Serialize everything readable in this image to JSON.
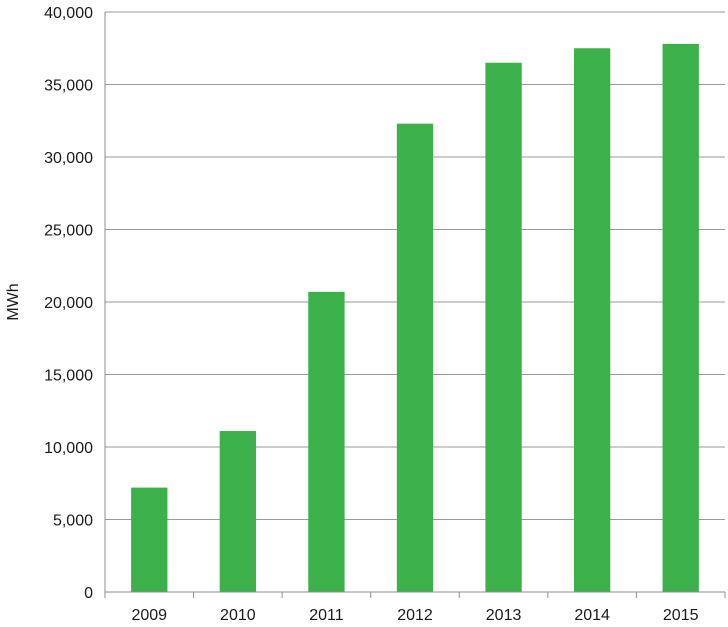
{
  "chart_data": {
    "type": "bar",
    "title": "",
    "xlabel": "",
    "ylabel": "MWh",
    "categories": [
      "2009",
      "2010",
      "2011",
      "2012",
      "2013",
      "2014",
      "2015"
    ],
    "values": [
      7200,
      11100,
      20700,
      32300,
      36500,
      37500,
      37800
    ],
    "ylim": [
      0,
      40000
    ],
    "yticks": [
      0,
      5000,
      10000,
      15000,
      20000,
      25000,
      30000,
      35000,
      40000
    ],
    "ytick_labels": [
      "0",
      "5,000",
      "10,000",
      "15,000",
      "20,000",
      "25,000",
      "30,000",
      "35,000",
      "40,000"
    ],
    "grid": true,
    "legend": "none",
    "bar_color": "#3cb04a"
  }
}
